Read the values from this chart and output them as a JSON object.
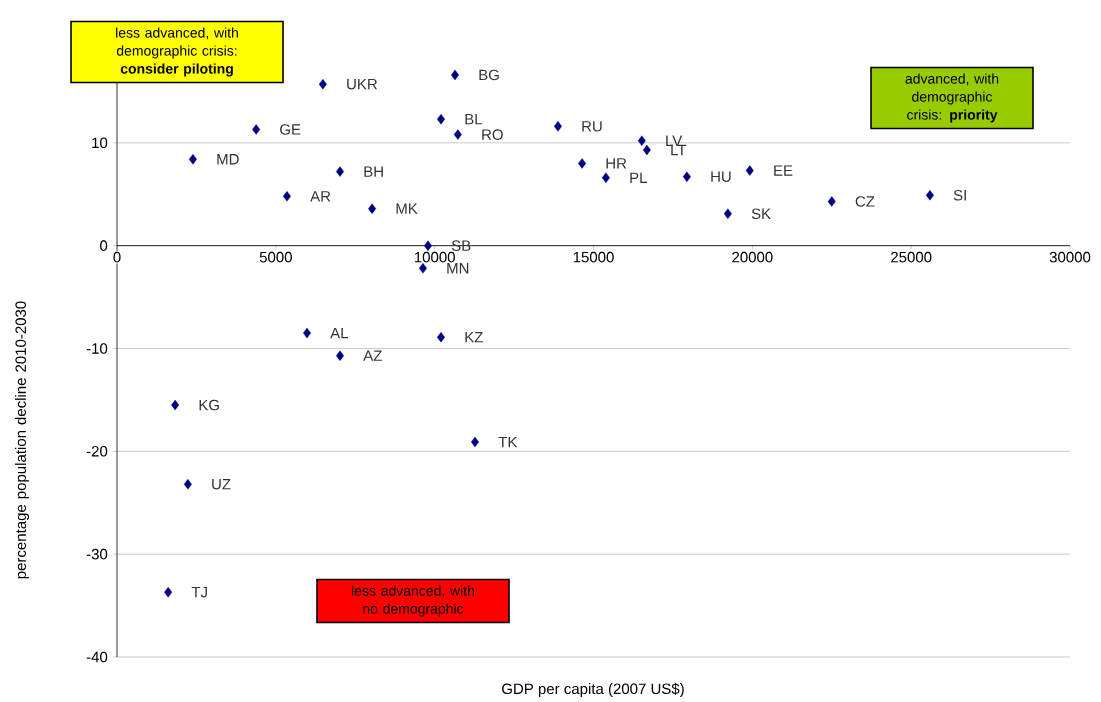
{
  "chart_data": {
    "type": "scatter",
    "xlabel": "GDP per capita (2007 US$)",
    "ylabel": "percentage population decline 2010-2030",
    "xlim": [
      0,
      30000
    ],
    "ylim": [
      -40,
      20
    ],
    "xticks": [
      0,
      5000,
      10000,
      15000,
      20000,
      25000,
      30000
    ],
    "yticks": [
      -40,
      -30,
      -20,
      -10,
      0,
      10
    ],
    "grid": "y",
    "marker": "diamond",
    "series": [
      {
        "color": "#000080",
        "x": [
          6480,
          4380,
          2390,
          7020,
          5350,
          8030,
          9790,
          9630,
          10640,
          10200,
          10730,
          13880,
          16520,
          16680,
          14640,
          15390,
          17940,
          19920,
          19230,
          22500,
          25590,
          5980,
          7020,
          10200,
          1830,
          11270,
          2230,
          1610
        ],
        "values": [
          15.7,
          11.3,
          8.4,
          7.2,
          4.8,
          3.6,
          0,
          -2.2,
          16.6,
          12.3,
          10.8,
          11.6,
          10.2,
          9.3,
          8.0,
          6.6,
          6.7,
          7.3,
          3.1,
          4.3,
          4.9,
          -8.5,
          -10.7,
          -8.9,
          -15.5,
          -19.1,
          -23.2,
          -33.7
        ]
      }
    ],
    "annotations": [
      "less advanced, with demographic crisis: **consider piloting**",
      "advanced, with demographic crisis: **priority**",
      "less advanced, with no demographic",
      {
        "text": "UKR",
        "x": 6480,
        "y": 15.7
      },
      {
        "text": "GE",
        "x": 4380,
        "y": 11.3
      },
      {
        "text": "MD",
        "x": 2390,
        "y": 8.4
      },
      {
        "text": "BH",
        "x": 7020,
        "y": 7.2
      },
      {
        "text": "AR",
        "x": 5350,
        "y": 4.8
      },
      {
        "text": "MK",
        "x": 8030,
        "y": 3.6
      },
      {
        "text": "SB",
        "x": 9790,
        "y": 0
      },
      {
        "text": "MN",
        "x": 9630,
        "y": -2.2
      },
      {
        "text": "BG",
        "x": 10640,
        "y": 16.6
      },
      {
        "text": "BL",
        "x": 10200,
        "y": 12.3
      },
      {
        "text": "RO",
        "x": 10730,
        "y": 10.8
      },
      {
        "text": "RU",
        "x": 13880,
        "y": 11.6
      },
      {
        "text": "LV",
        "x": 16520,
        "y": 10.2
      },
      {
        "text": "LT",
        "x": 16680,
        "y": 9.3
      },
      {
        "text": "HR",
        "x": 14640,
        "y": 8.0
      },
      {
        "text": "PL",
        "x": 15390,
        "y": 6.6
      },
      {
        "text": "HU",
        "x": 17940,
        "y": 6.7
      },
      {
        "text": "EE",
        "x": 19920,
        "y": 7.3
      },
      {
        "text": "SK",
        "x": 19230,
        "y": 3.1
      },
      {
        "text": "CZ",
        "x": 22500,
        "y": 4.3
      },
      {
        "text": "SI",
        "x": 25590,
        "y": 4.9
      },
      {
        "text": "AL",
        "x": 5980,
        "y": -8.5
      },
      {
        "text": "AZ",
        "x": 7020,
        "y": -10.7
      },
      {
        "text": "KZ",
        "x": 10200,
        "y": -8.9
      },
      {
        "text": "KG",
        "x": 1830,
        "y": -15.5
      },
      {
        "text": "TK",
        "x": 11270,
        "y": -19.1
      },
      {
        "text": "UZ",
        "x": 2230,
        "y": -23.2
      },
      {
        "text": "TJ",
        "x": 1610,
        "y": -33.7
      }
    ]
  }
}
